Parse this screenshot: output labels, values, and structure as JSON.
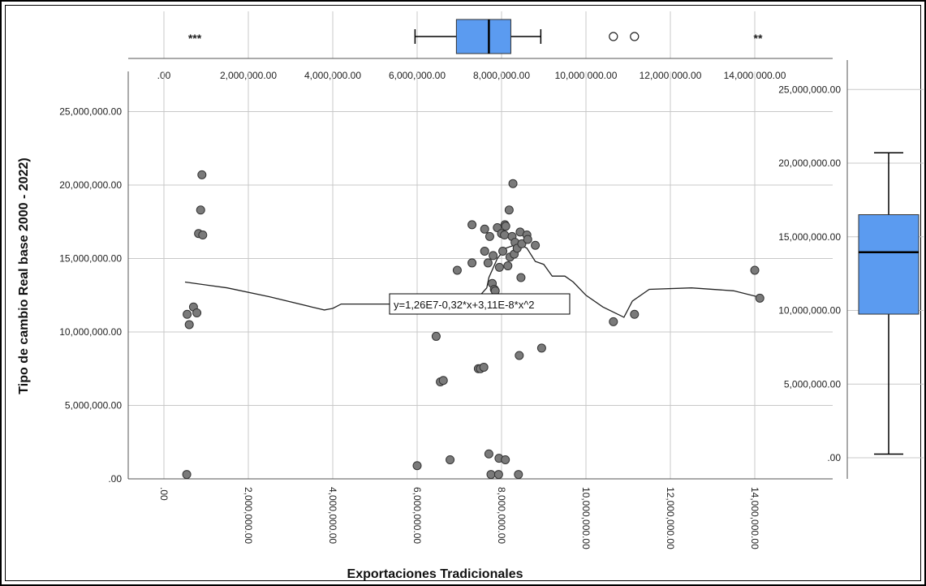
{
  "chart_data": {
    "type": "scatter",
    "xlabel": "Exportaciones Tradicionales",
    "ylabel": "Tipo de cambio Real base 2000 - 2022)",
    "xlim": [
      0,
      16000000
    ],
    "ylim": [
      0,
      27000000
    ],
    "x_ticks": [
      {
        "value": 0,
        "label": ".00"
      },
      {
        "value": 2000000,
        "label": "2,000,000.00"
      },
      {
        "value": 4000000,
        "label": "4,000,000.00"
      },
      {
        "value": 6000000,
        "label": "6,000,000.00"
      },
      {
        "value": 8000000,
        "label": "8,000,000.00"
      },
      {
        "value": 10000000,
        "label": "10,000,000.00"
      },
      {
        "value": 12000000,
        "label": "12,000,000.00"
      },
      {
        "value": 14000000,
        "label": "14,000,000.00"
      }
    ],
    "y_ticks": [
      {
        "value": 0,
        "label": ".00"
      },
      {
        "value": 5000000,
        "label": "5,000,000.00"
      },
      {
        "value": 10000000,
        "label": "10,000,000.00"
      },
      {
        "value": 15000000,
        "label": "15,000,000.00"
      },
      {
        "value": 20000000,
        "label": "20,000,000.00"
      },
      {
        "value": 25000000,
        "label": "25,000,000.00"
      }
    ],
    "grid": true,
    "point_color": "#7a7a7a",
    "box_color": "#5b9bf0",
    "points": [
      [
        550000,
        11200000
      ],
      [
        600000,
        10500000
      ],
      [
        700000,
        11700000
      ],
      [
        780000,
        11300000
      ],
      [
        540000,
        300000
      ],
      [
        820000,
        16700000
      ],
      [
        870000,
        18300000
      ],
      [
        900000,
        20700000
      ],
      [
        920000,
        16600000
      ],
      [
        6000000,
        900000
      ],
      [
        6450000,
        9700000
      ],
      [
        6550000,
        6600000
      ],
      [
        6620000,
        6700000
      ],
      [
        6780000,
        1300000
      ],
      [
        6950000,
        14200000
      ],
      [
        7300000,
        14700000
      ],
      [
        7300000,
        17300000
      ],
      [
        7450000,
        7500000
      ],
      [
        7500000,
        7500000
      ],
      [
        7580000,
        7600000
      ],
      [
        7600000,
        15500000
      ],
      [
        7600000,
        17000000
      ],
      [
        7680000,
        14700000
      ],
      [
        7700000,
        1700000
      ],
      [
        7720000,
        16500000
      ],
      [
        7750000,
        300000
      ],
      [
        7780000,
        13300000
      ],
      [
        7800000,
        15200000
      ],
      [
        7830000,
        12900000
      ],
      [
        7850000,
        12800000
      ],
      [
        7900000,
        17100000
      ],
      [
        7930000,
        300000
      ],
      [
        7940000,
        1400000
      ],
      [
        7950000,
        14400000
      ],
      [
        8000000,
        16700000
      ],
      [
        8030000,
        15500000
      ],
      [
        8070000,
        16600000
      ],
      [
        8080000,
        17300000
      ],
      [
        8090000,
        1300000
      ],
      [
        8100000,
        17200000
      ],
      [
        8150000,
        14500000
      ],
      [
        8180000,
        18300000
      ],
      [
        8200000,
        15100000
      ],
      [
        8250000,
        16500000
      ],
      [
        8270000,
        20100000
      ],
      [
        8300000,
        15300000
      ],
      [
        8320000,
        16100000
      ],
      [
        8370000,
        15700000
      ],
      [
        8400000,
        300000
      ],
      [
        8420000,
        8400000
      ],
      [
        8440000,
        16800000
      ],
      [
        8460000,
        13700000
      ],
      [
        8480000,
        16000000
      ],
      [
        8600000,
        16600000
      ],
      [
        8620000,
        16300000
      ],
      [
        8800000,
        15900000
      ],
      [
        8950000,
        8900000
      ],
      [
        10650000,
        10700000
      ],
      [
        11150000,
        11200000
      ],
      [
        14000000,
        14200000
      ],
      [
        14120000,
        12300000
      ]
    ],
    "fit_line": [
      [
        500000,
        13400000
      ],
      [
        1500000,
        13000000
      ],
      [
        2500000,
        12400000
      ],
      [
        3500000,
        11700000
      ],
      [
        3800000,
        11500000
      ],
      [
        4000000,
        11600000
      ],
      [
        4200000,
        11900000
      ],
      [
        6000000,
        11900000
      ],
      [
        7000000,
        12000000
      ],
      [
        7400000,
        12200000
      ],
      [
        7650000,
        13000000
      ],
      [
        7700000,
        13700000
      ],
      [
        7900000,
        15000000
      ],
      [
        8100000,
        15700000
      ],
      [
        8400000,
        16000000
      ],
      [
        8600000,
        15700000
      ],
      [
        8800000,
        14800000
      ],
      [
        9000000,
        14600000
      ],
      [
        9200000,
        13800000
      ],
      [
        9500000,
        13800000
      ],
      [
        9700000,
        13400000
      ],
      [
        10000000,
        12500000
      ],
      [
        10400000,
        11700000
      ],
      [
        10900000,
        11000000
      ],
      [
        11100000,
        12100000
      ],
      [
        11500000,
        12900000
      ],
      [
        12500000,
        13000000
      ],
      [
        13500000,
        12800000
      ],
      [
        14200000,
        12300000
      ]
    ],
    "fit_equation": "y=1,26E7-0,32*x+3,11E-8*x^2",
    "x_boxplot": {
      "whisker_low": 5950000,
      "q1": 6930000,
      "median": 7700000,
      "q3": 8220000,
      "whisker_high": 8930000
    },
    "x_outliers_circle": [
      10650000,
      11150000
    ],
    "x_outliers_star_left": "***",
    "x_outliers_star_right": "**",
    "y_boxplot": {
      "whisker_low": 250000,
      "q1": 9750000,
      "median": 13950000,
      "q3": 16500000,
      "whisker_high": 20700000
    }
  }
}
